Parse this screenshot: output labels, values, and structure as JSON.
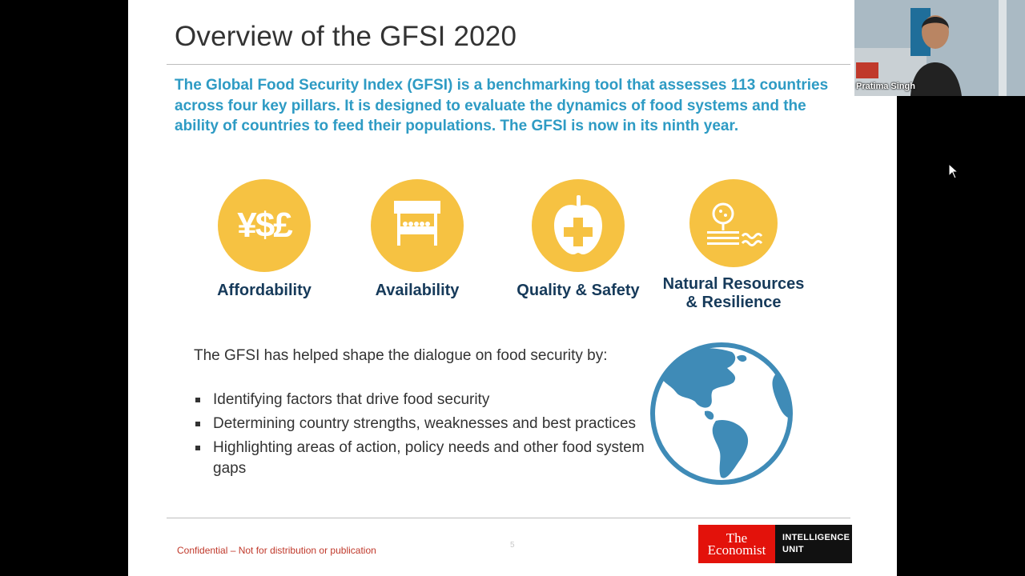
{
  "slide": {
    "title": "Overview of the GFSI 2020",
    "intro": "The Global Food Security Index (GFSI) is a benchmarking tool that assesses 113 countries across four key pillars. It is designed to evaluate the dynamics of food systems and the ability of countries to feed their populations. The GFSI is now in its ninth year.",
    "pillars": [
      {
        "label": "Affordability",
        "icon": "currency-icon",
        "icon_text": "¥$£"
      },
      {
        "label": "Availability",
        "icon": "market-stall-icon"
      },
      {
        "label": "Quality & Safety",
        "icon": "apple-plus-icon"
      },
      {
        "label_line1": "Natural Resources",
        "label_line2": "& Resilience",
        "icon": "tree-water-icon"
      }
    ],
    "lead": "The GFSI has helped shape the dialogue on food security by:",
    "bullets": [
      "Identifying factors that drive food security",
      "Determining country strengths, weaknesses and best practices",
      "Highlighting areas of action, policy needs and other food system gaps"
    ],
    "footer": {
      "confidential": "Confidential – Not for distribution or publication",
      "page_number": "5",
      "logo_line1": "The",
      "logo_line2": "Economist",
      "logo_unit_line1": "INTELLIGENCE",
      "logo_unit_line2": "UNIT"
    }
  },
  "webcam": {
    "participant_name": "Pratima Singh"
  },
  "colors": {
    "accent_blue": "#2e9bc4",
    "pillar_yellow": "#f6c242",
    "label_navy": "#163a5a",
    "economist_red": "#e3120b",
    "globe_blue": "#3f8bb7"
  }
}
